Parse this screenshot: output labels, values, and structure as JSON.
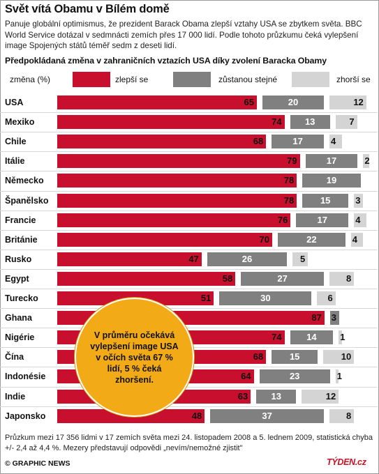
{
  "title": "Svět vítá Obamu v Bílém domě",
  "subtitle": "Panuje globální optimismus, že prezident Barack Obama zlepší vztahy USA se zbytkem světa. BBC World Service dotázal v sedmnácti zemích přes 17 000 lidí. Podle tohoto průzkumu čeká vylepšení image Spojených států téměř sedm z deseti lidí.",
  "footnote": "Průzkum mezi 17 356 lidmi v 17 zemích světa mezi 24. listopadem 2008 a 5. lednem 2009, statistická chyba +/- 2,4 až 4,4 %. Mezery představují odpovědi „nevím/nemožné zjistit\"",
  "credit": "© GRAPHIC NEWS",
  "brand": "TÝDEN.cz",
  "callout": "V průměru očekává vylepšení image USA v očích světa 67 % lidí, 5 % čeká zhoršení.",
  "colors": {
    "better": "#c8102e",
    "same": "#808080",
    "worse": "#d4d4d4",
    "callout": "#f2aa16"
  },
  "chart_data": {
    "type": "bar",
    "stacked": true,
    "title": "Předpokládaná změna v zahraničních vztazích USA díky zvolení Baracka Obamy",
    "unit_label": "změna (%)",
    "categories": [
      "USA",
      "Mexiko",
      "Chile",
      "Itálie",
      "Německo",
      "Španělsko",
      "Francie",
      "Británie",
      "Rusko",
      "Egypt",
      "Turecko",
      "Ghana",
      "Nigérie",
      "Čína",
      "Indonésie",
      "Indie",
      "Japonsko"
    ],
    "series": [
      {
        "name": "zlepší se",
        "values": [
          65,
          74,
          68,
          79,
          78,
          78,
          76,
          70,
          47,
          58,
          51,
          87,
          74,
          68,
          64,
          63,
          48
        ]
      },
      {
        "name": "zůstanou stejné",
        "values": [
          20,
          13,
          17,
          17,
          19,
          15,
          17,
          22,
          26,
          27,
          30,
          3,
          14,
          15,
          23,
          13,
          37
        ]
      },
      {
        "name": "zhorší se",
        "values": [
          12,
          7,
          4,
          2,
          0,
          3,
          4,
          4,
          5,
          8,
          6,
          0,
          1,
          10,
          1,
          12,
          8
        ]
      }
    ],
    "value_labels": {
      "better": [
        "65",
        "74",
        "68",
        "79",
        "78",
        "78",
        "76",
        "70",
        "47",
        "58",
        "51",
        "87",
        "74",
        "68",
        "64",
        "63",
        "48"
      ],
      "same": [
        "20",
        "13",
        "17",
        "17",
        "19",
        "15",
        "17",
        "22",
        "26",
        "27",
        "30",
        "3",
        "14",
        "15",
        "23",
        "13",
        "37"
      ],
      "worse": [
        "12",
        "7",
        "4",
        "2",
        "",
        "3",
        "4",
        "4",
        "5",
        "8",
        "6",
        "",
        "1",
        "10",
        "1",
        "12",
        "8"
      ]
    },
    "xlim": [
      0,
      100
    ],
    "legend_placement": "top"
  }
}
